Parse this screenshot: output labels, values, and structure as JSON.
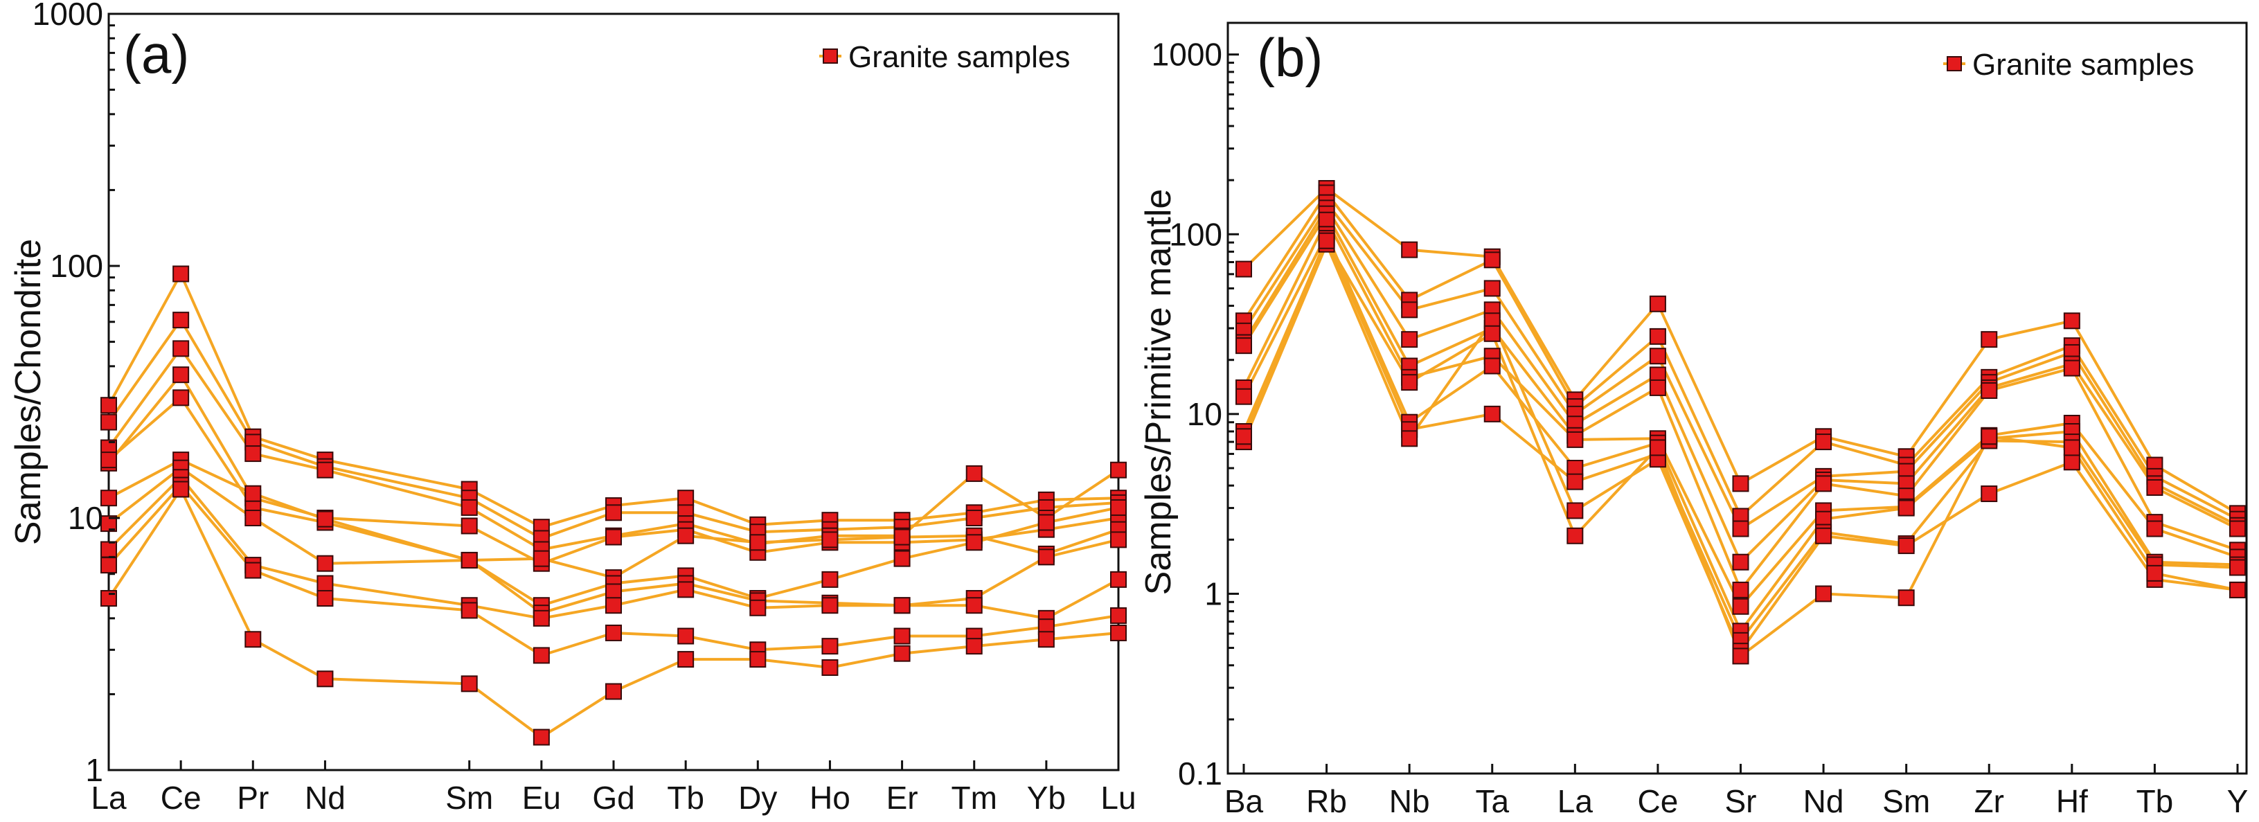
{
  "chart_data": [
    {
      "type": "line",
      "panel_label": "(a)",
      "title": "",
      "ylabel": "Samples/Chondrite",
      "xlabel": "",
      "yscale": "log",
      "ylim": [
        1,
        1000
      ],
      "ytick_labels": [
        "1",
        "10",
        "100",
        "1000"
      ],
      "ytick_values": [
        1,
        10,
        100,
        1000
      ],
      "categories": [
        "La",
        "Ce",
        "Pr",
        "Nd",
        "Sm",
        "Eu",
        "Gd",
        "Tb",
        "Dy",
        "Ho",
        "Er",
        "Tm",
        "Yb",
        "Lu"
      ],
      "category_positions": [
        0,
        1,
        2,
        3,
        5,
        6,
        7,
        8,
        9,
        10,
        11,
        12,
        13,
        14
      ],
      "legend": {
        "label": "Granite samples",
        "location": "top-right"
      },
      "grid": false,
      "series": [
        {
          "name": "Granite samples",
          "values": [
            28,
            93,
            21,
            17,
            13,
            9.2,
            11.2,
            12,
            9.4,
            9.8,
            9.8,
            10.5,
            11.8,
            12
          ]
        },
        {
          "name": "Granite samples",
          "values": [
            24,
            61,
            20,
            16,
            12,
            8.3,
            10.5,
            10.5,
            8.8,
            9,
            9.2,
            10,
            11,
            11.5
          ]
        },
        {
          "name": "Granite samples",
          "values": [
            19,
            47,
            18,
            15.5,
            11,
            7.5,
            8.5,
            9.5,
            7.9,
            8.5,
            8.5,
            15,
            10,
            15.5
          ]
        },
        {
          "name": "Granite samples",
          "values": [
            16.5,
            37,
            12,
            10,
            9.3,
            6.6,
            8.4,
            9,
            7.3,
            8.0,
            8,
            8.2,
            9,
            10
          ]
        },
        {
          "name": "Granite samples",
          "values": [
            17,
            30,
            11,
            9.6,
            6.8,
            6.9,
            5.8,
            8.5,
            8.0,
            8.2,
            8.4,
            8.5,
            7.2,
            9
          ]
        },
        {
          "name": "Granite samples",
          "values": [
            12,
            17,
            12.5,
            9.9,
            6.8,
            4.5,
            5.5,
            5.9,
            4.8,
            5.7,
            6.9,
            8,
            9.6,
            11
          ]
        },
        {
          "name": "Granite samples",
          "values": [
            9.5,
            15.8,
            10,
            6.6,
            6.8,
            4.2,
            5.1,
            5.5,
            4.7,
            4.6,
            4.5,
            4.8,
            7,
            8.2
          ]
        },
        {
          "name": "Granite samples",
          "values": [
            7.5,
            14.5,
            6.5,
            5.5,
            4.5,
            4.0,
            4.5,
            5.2,
            4.4,
            4.5,
            4.5,
            4.5,
            4.0,
            5.7
          ]
        },
        {
          "name": "Granite samples",
          "values": [
            6.5,
            13.5,
            6.2,
            4.8,
            4.3,
            2.85,
            3.5,
            3.4,
            3.0,
            3.1,
            3.4,
            3.4,
            3.7,
            4.1
          ]
        },
        {
          "name": "Granite samples",
          "values": [
            4.8,
            13,
            3.3,
            2.3,
            2.2,
            1.35,
            2.05,
            2.75,
            2.75,
            2.55,
            2.9,
            3.1,
            3.3,
            3.5
          ]
        }
      ]
    },
    {
      "type": "line",
      "panel_label": "(b)",
      "title": "",
      "ylabel": "Samples/Primitive mantle",
      "xlabel": "",
      "yscale": "log",
      "ylim": [
        0.1,
        1500
      ],
      "ytick_labels": [
        "0.1",
        "1",
        "10",
        "100",
        "1000"
      ],
      "ytick_values": [
        0.1,
        1,
        10,
        100,
        1000
      ],
      "categories": [
        "Ba",
        "Rb",
        "Nb",
        "Ta",
        "La",
        "Ce",
        "Sr",
        "Nd",
        "Sm",
        "Zr",
        "Hf",
        "Tb",
        "Y"
      ],
      "category_positions": [
        0,
        1,
        2,
        3,
        4,
        5,
        6,
        7,
        8,
        9,
        10,
        11,
        12
      ],
      "legend": {
        "label": "Granite samples",
        "location": "top-right"
      },
      "grid": false,
      "series": [
        {
          "name": "Granite samples",
          "values": [
            64,
            180,
            82,
            75,
            12,
            41,
            4.1,
            7.5,
            5.8,
            26,
            33,
            5.2,
            2.8
          ]
        },
        {
          "name": "Granite samples",
          "values": [
            33,
            170,
            43,
            72,
            11,
            27,
            2.7,
            7,
            5.2,
            16,
            24,
            4.5,
            2.6
          ]
        },
        {
          "name": "Granite samples",
          "values": [
            29,
            150,
            38,
            50,
            10,
            21,
            2.3,
            4.5,
            4.8,
            15,
            22,
            4.1,
            2.4
          ]
        },
        {
          "name": "Granite samples",
          "values": [
            25,
            140,
            26,
            38,
            8.8,
            16.5,
            1.5,
            4.3,
            4.1,
            14,
            19,
            3.9,
            2.3
          ]
        },
        {
          "name": "Granite samples",
          "values": [
            24,
            130,
            18.5,
            30,
            7.6,
            14,
            1.05,
            4.1,
            3.5,
            13.5,
            18,
            2.5,
            1.75
          ]
        },
        {
          "name": "Granite samples",
          "values": [
            14,
            120,
            16,
            21,
            7.2,
            7.3,
            0.85,
            2.9,
            3.05,
            7.6,
            8.9,
            2.3,
            1.6
          ]
        },
        {
          "name": "Granite samples",
          "values": [
            12.5,
            100,
            9,
            18.5,
            5,
            6.9,
            0.62,
            2.6,
            3.0,
            7.3,
            8,
            1.5,
            1.45
          ]
        },
        {
          "name": "Granite samples",
          "values": [
            8,
            95,
            8.2,
            10,
            4.2,
            6,
            0.55,
            2.2,
            1.9,
            7.1,
            7,
            1.45,
            1.4
          ]
        },
        {
          "name": "Granite samples",
          "values": [
            7,
            88,
            7.3,
            33,
            2.9,
            5.6,
            0.48,
            2.1,
            1.85,
            3.6,
            5.4,
            1.2,
            1.05
          ]
        },
        {
          "name": "Granite samples",
          "values": [
            7.5,
            92,
            15,
            28,
            2.1,
            6.5,
            0.45,
            1.0,
            0.95,
            7.5,
            6.5,
            1.3,
            1.05
          ]
        }
      ]
    }
  ],
  "colors": {
    "line": "#F5A623",
    "marker_fill": "#E31A1C",
    "marker_edge": "#3A0A0A",
    "axis": "#111111",
    "background": "#FFFFFF"
  }
}
